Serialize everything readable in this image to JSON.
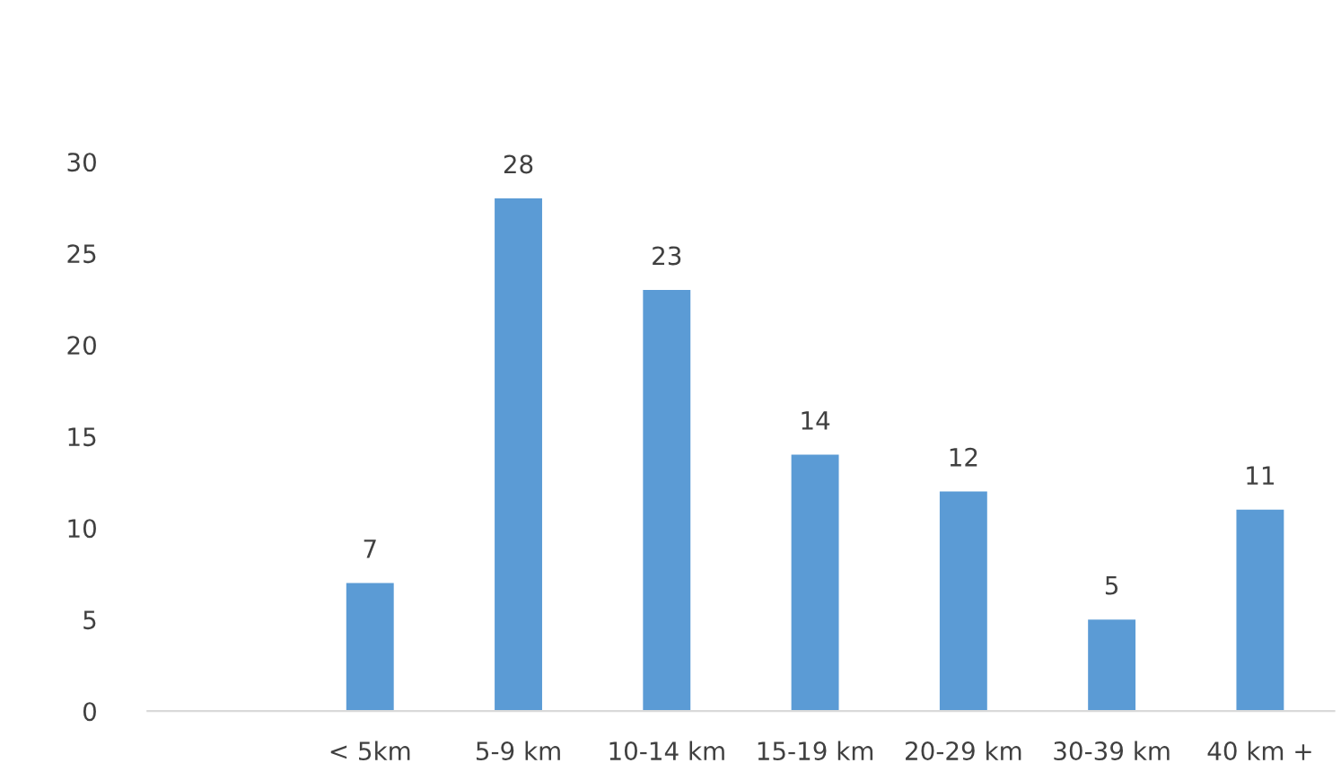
{
  "chart_data": {
    "type": "bar",
    "categories": [
      null,
      "< 5km",
      "5-9 km",
      "10-14 km",
      "15-19 km",
      "20-29 km",
      "30-39 km",
      "40 km +"
    ],
    "values": [
      null,
      7,
      28,
      23,
      14,
      12,
      5,
      11
    ],
    "color": "#5b9bd5",
    "ylim": [
      0,
      30
    ],
    "yticks": [
      0,
      5,
      10,
      15,
      20,
      25,
      30
    ],
    "grid": false,
    "data_labels": true
  }
}
